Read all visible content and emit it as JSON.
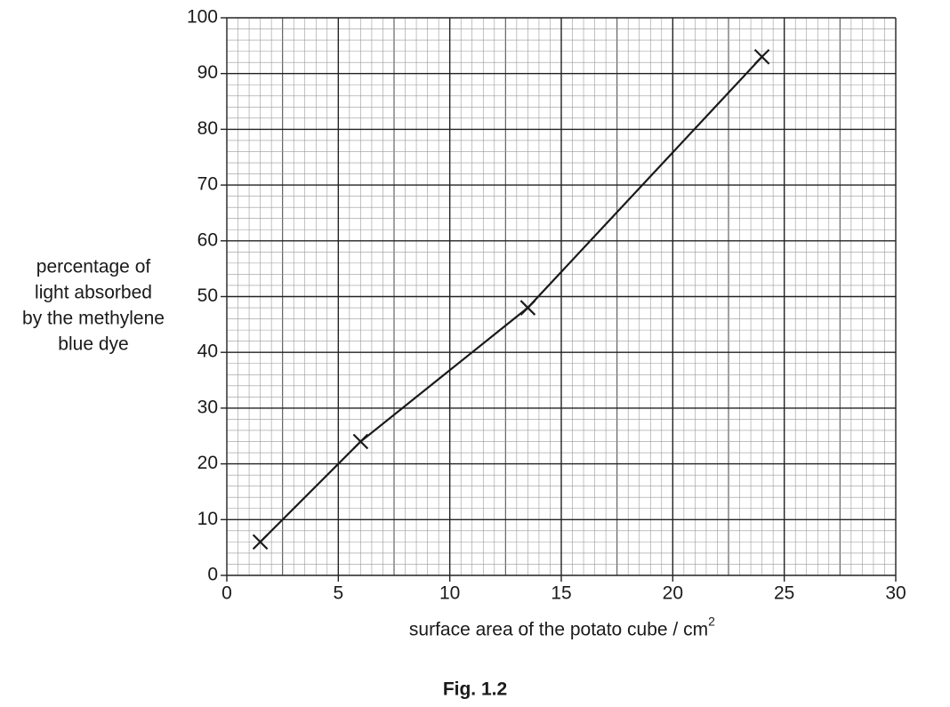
{
  "chart_data": {
    "type": "line",
    "title": "Fig. 1.2",
    "ylabel": [
      "percentage of",
      "light absorbed",
      "by the methylene",
      "blue dye"
    ],
    "xlabel": "surface area of the potato cube / cm",
    "xlabel_superscript": "2",
    "x": [
      1.5,
      6,
      13.5,
      24
    ],
    "series": [
      {
        "color": "#1a1a1a",
        "values": [
          6,
          24,
          48,
          93
        ]
      }
    ],
    "xlim": [
      0,
      30
    ],
    "xticks": [
      0,
      5,
      10,
      15,
      20,
      25,
      30
    ],
    "ylim": [
      0,
      100
    ],
    "yticks": [
      0,
      10,
      20,
      30,
      40,
      50,
      60,
      70,
      80,
      90,
      100
    ],
    "grid": true,
    "marker": "x"
  }
}
